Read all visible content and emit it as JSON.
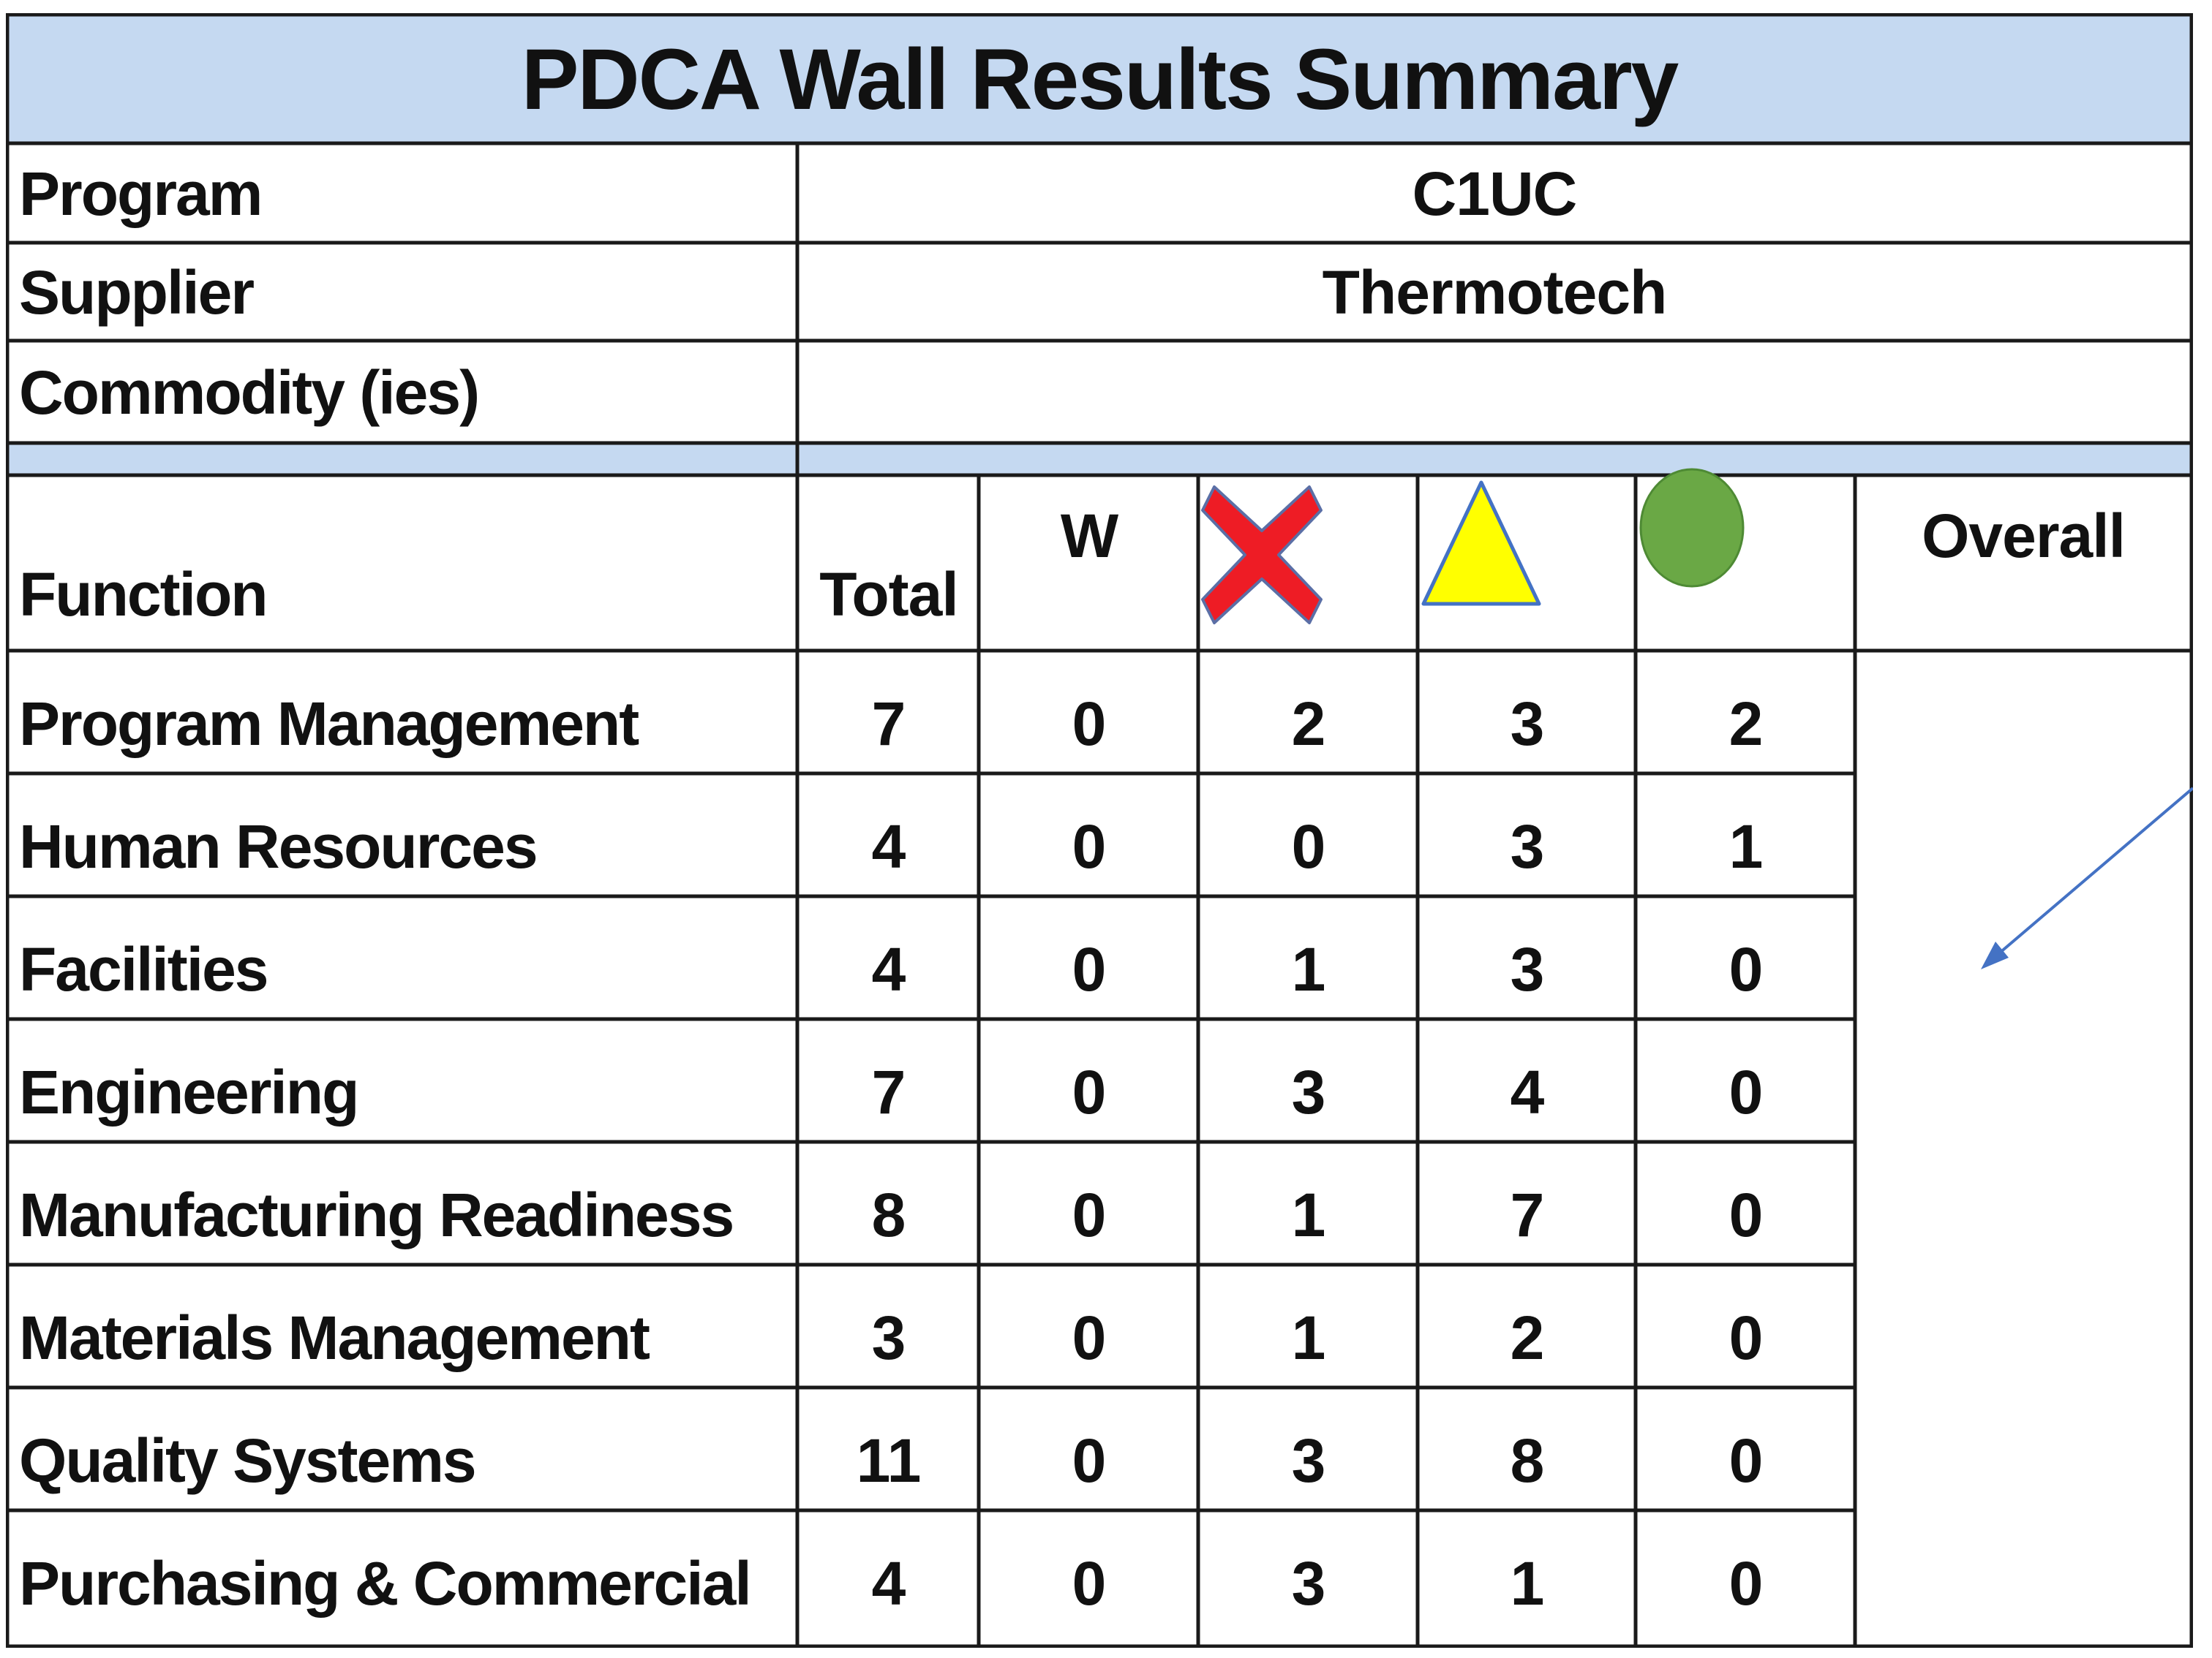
{
  "title": "PDCA Wall Results Summary",
  "info": [
    {
      "label": "Program",
      "value": "C1UC"
    },
    {
      "label": "Supplier",
      "value": "Thermotech"
    },
    {
      "label": "Commodity (ies)",
      "value": ""
    }
  ],
  "headers": {
    "function": "Function",
    "total": "Total",
    "w": "W",
    "red_icon": "red-x-icon",
    "yellow_icon": "yellow-triangle-icon",
    "green_icon": "green-circle-icon",
    "overall": "Overall"
  },
  "colors": {
    "header_fill": "#c5d9f1",
    "red": "#ee1c25",
    "yellow": "#ffff00",
    "green": "#6aa845",
    "arrow": "#4472c4"
  },
  "rows": [
    {
      "function": "Program Management",
      "total": "7",
      "w": "0",
      "red": "2",
      "yellow": "3",
      "green": "2"
    },
    {
      "function": "Human Resources",
      "total": "4",
      "w": "0",
      "red": "0",
      "yellow": "3",
      "green": "1"
    },
    {
      "function": "Facilities",
      "total": "4",
      "w": "0",
      "red": "1",
      "yellow": "3",
      "green": "0"
    },
    {
      "function": "Engineering",
      "total": "7",
      "w": "0",
      "red": "3",
      "yellow": "4",
      "green": "0"
    },
    {
      "function": "Manufacturing Readiness",
      "total": "8",
      "w": "0",
      "red": "1",
      "yellow": "7",
      "green": "0"
    },
    {
      "function": "Materials Management",
      "total": "3",
      "w": "0",
      "red": "1",
      "yellow": "2",
      "green": "0"
    },
    {
      "function": "Quality Systems",
      "total": "11",
      "w": "0",
      "red": "3",
      "yellow": "8",
      "green": "0"
    },
    {
      "function": "Purchasing & Commercial",
      "total": "4",
      "w": "0",
      "red": "3",
      "yellow": "1",
      "green": "0"
    }
  ]
}
